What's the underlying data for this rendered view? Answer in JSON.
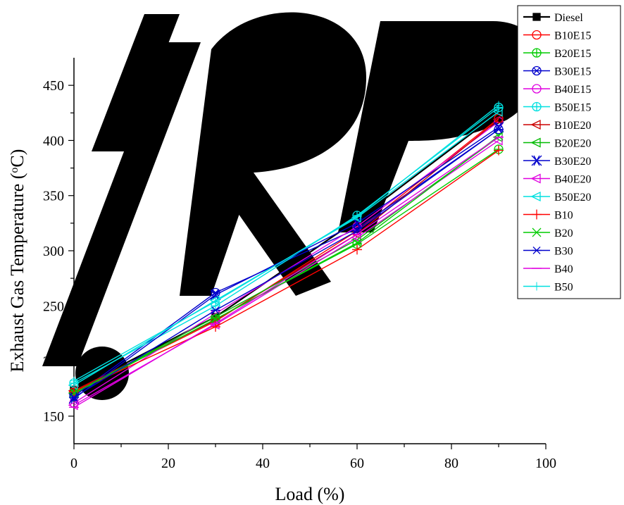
{
  "chart_data": {
    "type": "line",
    "title": "",
    "xlabel": "Load (%)",
    "ylabel_main": "Exhaust Gas Temperature (",
    "ylabel_sup": "o",
    "ylabel_end": "C)",
    "xlim": [
      0,
      100
    ],
    "ylim": [
      125,
      475
    ],
    "xticks": [
      0,
      20,
      40,
      60,
      80,
      100
    ],
    "yticks": [
      150,
      200,
      250,
      300,
      350,
      400,
      450
    ],
    "legend_position": "top-right",
    "grid": false,
    "x": [
      0,
      30,
      60,
      90
    ],
    "series": [
      {
        "name": "Diesel",
        "color": "#000000",
        "marker": "square-filled",
        "values": [
          174,
          240,
          328,
          425
        ]
      },
      {
        "name": "B10E15",
        "color": "#ff0000",
        "marker": "circle",
        "values": [
          172,
          236,
          318,
          420
        ]
      },
      {
        "name": "B20E15",
        "color": "#00cc00",
        "marker": "circle-plus",
        "values": [
          170,
          238,
          306,
          392
        ]
      },
      {
        "name": "B30E15",
        "color": "#0000cc",
        "marker": "circle-x",
        "values": [
          168,
          262,
          320,
          410
        ]
      },
      {
        "name": "B40E15",
        "color": "#e000e0",
        "marker": "circle",
        "values": [
          162,
          243,
          322,
          417
        ]
      },
      {
        "name": "B50E15",
        "color": "#00e0e0",
        "marker": "circle-plus",
        "values": [
          180,
          250,
          332,
          430
        ]
      },
      {
        "name": "B10E20",
        "color": "#cc0000",
        "marker": "triangle-left",
        "values": [
          173,
          237,
          315,
          419
        ]
      },
      {
        "name": "B20E20",
        "color": "#00bb00",
        "marker": "triangle-left",
        "values": [
          171,
          240,
          310,
          403
        ]
      },
      {
        "name": "B30E20",
        "color": "#0000cc",
        "marker": "x-star",
        "values": [
          166,
          260,
          325,
          412
        ]
      },
      {
        "name": "B40E20",
        "color": "#e000e0",
        "marker": "triangle-left",
        "values": [
          160,
          233,
          312,
          400
        ]
      },
      {
        "name": "B50E20",
        "color": "#00e0e0",
        "marker": "triangle-left",
        "values": [
          178,
          255,
          330,
          426
        ]
      },
      {
        "name": "B10",
        "color": "#ff0000",
        "marker": "plus",
        "values": [
          172,
          231,
          301,
          391
        ]
      },
      {
        "name": "B20",
        "color": "#00cc00",
        "marker": "x",
        "values": [
          171,
          238,
          307,
          404
        ]
      },
      {
        "name": "B30",
        "color": "#0000cc",
        "marker": "asterisk",
        "values": [
          167,
          246,
          318,
          410
        ]
      },
      {
        "name": "B40",
        "color": "#e000e0",
        "marker": "dash",
        "values": [
          158,
          234,
          315,
          403
        ]
      },
      {
        "name": "B50",
        "color": "#00e0e0",
        "marker": "plus-thin",
        "values": [
          182,
          254,
          331,
          432
        ]
      }
    ]
  },
  "watermark": {
    "text": "IJRPR",
    "color": "#000000"
  }
}
